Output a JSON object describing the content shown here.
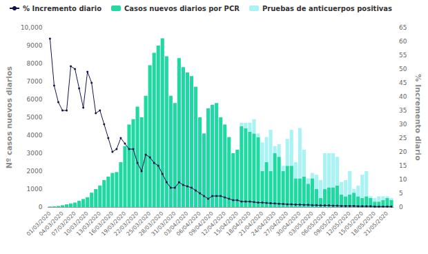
{
  "chart_data": {
    "type": "bar",
    "stacked": true,
    "grid": false,
    "legend": "top-left",
    "ylabel": "Nº casos nuevos diarios",
    "y2label": "% Incremento diario",
    "categories": [
      "01/03/2020",
      null,
      null,
      "04/03/2020",
      null,
      null,
      "07/03/2020",
      null,
      null,
      "10/03/2020",
      null,
      null,
      "13/03/2020",
      null,
      null,
      "16/03/2020",
      null,
      null,
      "19/03/2020",
      null,
      null,
      "22/03/2020",
      null,
      null,
      "25/03/2020",
      null,
      null,
      "28/03/2020",
      null,
      null,
      "31/03/2020",
      null,
      null,
      "03/04/2020",
      null,
      null,
      "06/04/2020",
      null,
      null,
      "09/04/2020",
      null,
      null,
      "12/04/2020",
      null,
      null,
      "15/04/2020",
      null,
      null,
      "18/04/2020",
      null,
      null,
      "21/04/2020",
      null,
      null,
      "24/04/2020",
      null,
      null,
      "27/04/2020",
      null,
      null,
      "30/04/2020",
      null,
      null,
      "03/05/2020",
      null,
      null,
      "06/05/2020",
      null,
      null,
      "09/05/2020",
      null,
      null,
      "12/05/2020",
      null,
      null,
      "15/05/2020",
      null,
      null,
      "18/05/2020",
      null,
      null,
      "21/05/2020",
      null
    ],
    "ylim": [
      0,
      10000
    ],
    "yticks": [
      0,
      1000,
      2000,
      3000,
      4000,
      5000,
      6000,
      7000,
      8000,
      9000,
      {
        "value": 10000,
        "label": "10,000"
      }
    ],
    "y2lim": [
      0,
      65
    ],
    "y2ticks": [
      0,
      5,
      10,
      15,
      20,
      25,
      30,
      35,
      40,
      45,
      50,
      55,
      60,
      65
    ],
    "series": [
      {
        "name": "% Incremento diario",
        "type": "line",
        "axis": "y2",
        "color": "#12124d",
        "marker": "circle",
        "values": [
          61,
          44,
          38,
          35,
          35,
          51,
          50,
          43,
          36,
          49,
          45,
          34,
          35,
          30,
          25,
          20,
          21,
          25,
          23,
          21,
          21,
          16,
          13,
          19,
          18,
          16,
          15,
          12,
          9,
          7,
          7,
          9,
          8,
          7.5,
          7,
          6,
          5,
          4,
          3,
          4,
          4,
          4,
          3.5,
          3,
          2.5,
          2.5,
          2,
          2,
          2,
          1.8,
          1.6,
          1.6,
          1.5,
          1.4,
          1.3,
          1.2,
          1.1,
          1,
          1,
          0.9,
          0.9,
          0.8,
          0.8,
          0.7,
          0.7,
          0.6,
          0.6,
          0.6,
          0.5,
          0.5,
          0.4,
          0.4,
          0.4,
          0.4,
          0.3,
          0.3,
          0.3,
          0.3,
          0.2,
          0.2,
          0.2,
          0.2,
          0.2
        ]
      },
      {
        "name": "Casos nuevos diarios por PCR",
        "type": "bar",
        "color": "#1fd8a2",
        "values": [
          30,
          40,
          60,
          100,
          150,
          200,
          250,
          350,
          450,
          550,
          800,
          1000,
          1200,
          1500,
          1700,
          1900,
          1950,
          2500,
          3400,
          4600,
          4900,
          5600,
          5000,
          6200,
          7900,
          8600,
          9000,
          9400,
          8400,
          6200,
          5800,
          8300,
          7800,
          7500,
          7300,
          6700,
          5000,
          4100,
          5500,
          5700,
          5800,
          5000,
          4600,
          3900,
          3000,
          3200,
          4500,
          4400,
          4200,
          4100,
          3900,
          2000,
          2500,
          2000,
          3000,
          2800,
          2000,
          2300,
          2300,
          1600,
          1600,
          1700,
          1300,
          1600,
          1000,
          500,
          1000,
          1100,
          1100,
          1200,
          700,
          600,
          700,
          800,
          600,
          500,
          600,
          500,
          300,
          300,
          400,
          500,
          400
        ]
      },
      {
        "name": "Pruebas de anticuerpos positivas",
        "type": "bar",
        "color": "#aaf3f4",
        "values": [
          null,
          null,
          null,
          null,
          null,
          null,
          null,
          null,
          null,
          null,
          null,
          null,
          null,
          null,
          null,
          null,
          null,
          null,
          null,
          null,
          null,
          null,
          null,
          null,
          null,
          null,
          null,
          null,
          null,
          null,
          null,
          null,
          null,
          null,
          null,
          null,
          null,
          null,
          null,
          null,
          null,
          null,
          null,
          null,
          null,
          null,
          200,
          300,
          500,
          800,
          200,
          1600,
          1400,
          2300,
          400,
          700,
          300,
          1500,
          2000,
          900,
          2800,
          1500,
          300,
          300,
          800,
          1000,
          2000,
          1900,
          1900,
          1600,
          700,
          900,
          1300,
          200,
          600,
          1300,
          1400,
          100,
          200,
          300,
          200,
          100,
          100
        ]
      }
    ]
  }
}
